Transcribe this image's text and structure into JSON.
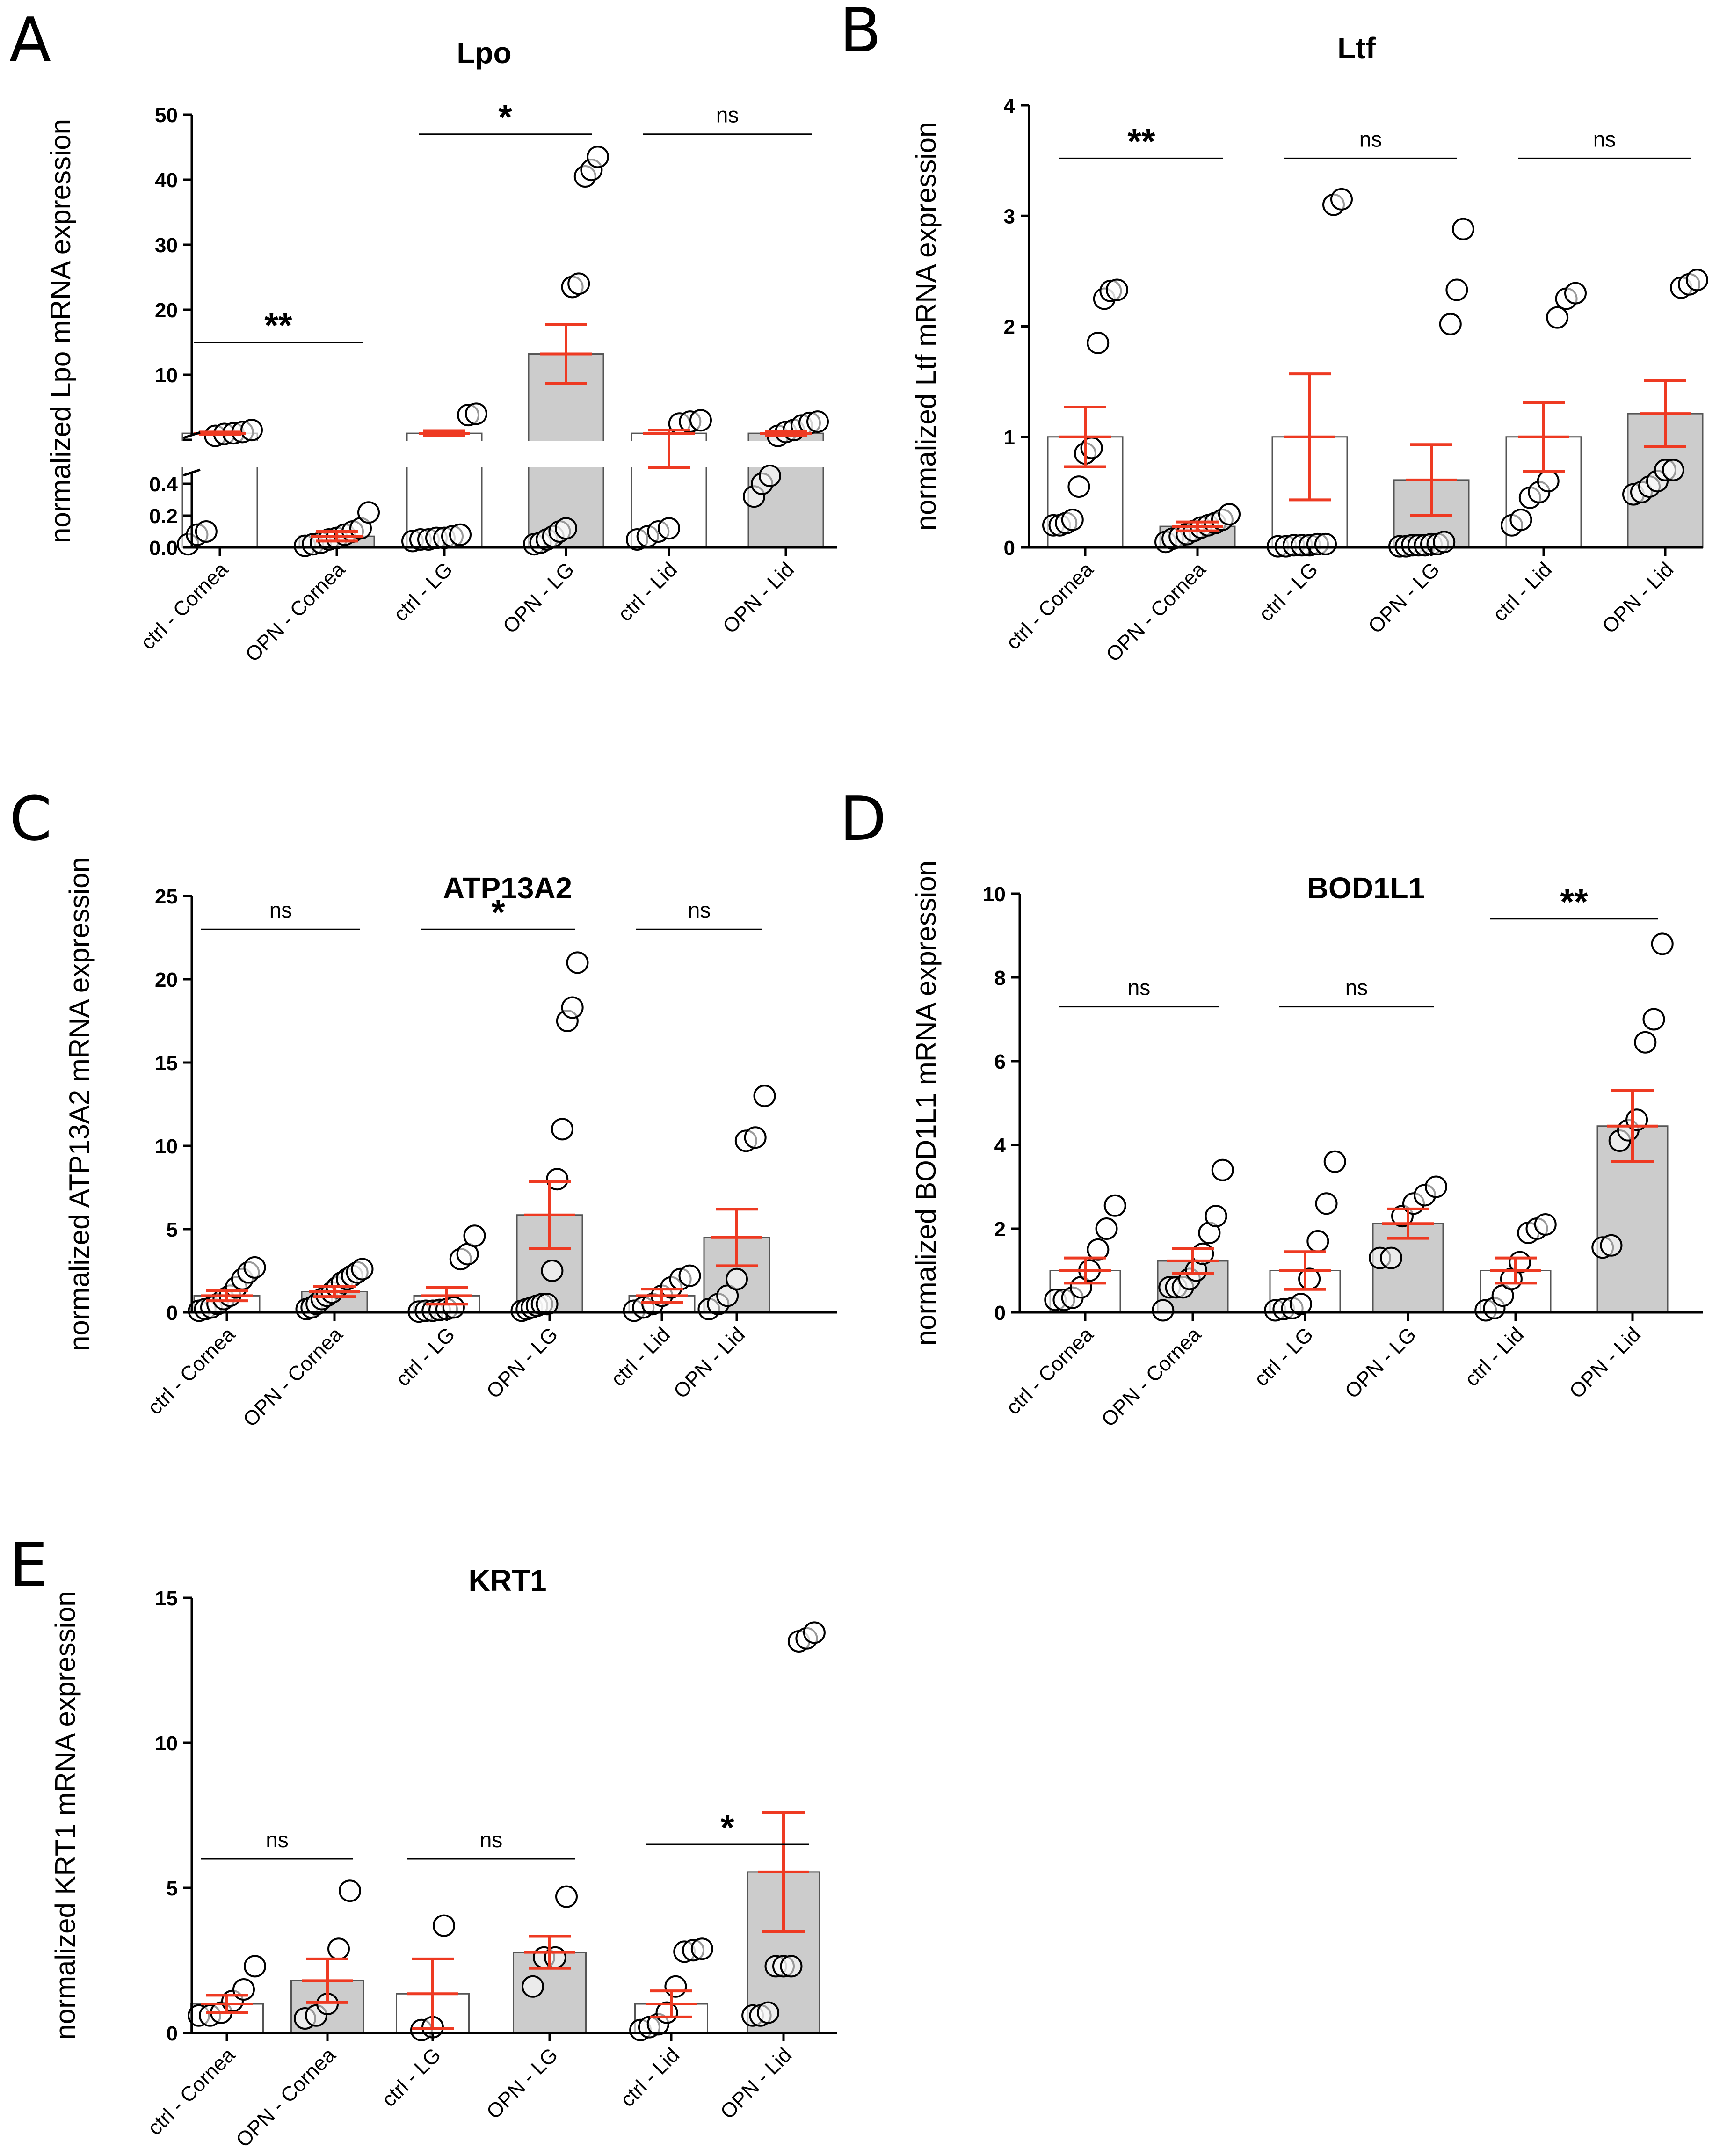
{
  "chart_data": [
    {
      "id": "A",
      "type": "bar",
      "panel_label": "A",
      "title": "Lpo",
      "ylabel": "normalized Lpo mRNA expression",
      "categories": [
        "ctrl - Cornea",
        "OPN - Cornea",
        "ctrl - LG",
        "OPN - LG",
        "ctrl - Lid",
        "OPN - Lid"
      ],
      "fills": [
        "#ffffff",
        "#cccccc",
        "#ffffff",
        "#cccccc",
        "#ffffff",
        "#cccccc"
      ],
      "axis_break": true,
      "ylim_lower": [
        0,
        0.5
      ],
      "ylim_upper": [
        0,
        50
      ],
      "yticks_lower": [
        "0.0",
        "0.2",
        "0.4"
      ],
      "yticks_upper": [
        "10",
        "20",
        "30",
        "40",
        "50"
      ],
      "values": [
        1.0,
        0.07,
        1.0,
        13.2,
        1.0,
        1.0
      ],
      "sem": [
        0.2,
        0.03,
        0.4,
        4.5,
        0.5,
        0.3
      ],
      "points": [
        [
          0.02,
          0.08,
          0.1,
          0.6,
          0.9,
          1.0,
          1.2,
          1.5
        ],
        [
          0.01,
          0.02,
          0.03,
          0.05,
          0.06,
          0.08,
          0.1,
          0.12,
          0.22
        ],
        [
          0.04,
          0.05,
          0.05,
          0.06,
          0.06,
          0.07,
          0.08,
          3.8,
          4.0
        ],
        [
          0.02,
          0.03,
          0.05,
          0.07,
          0.1,
          0.12,
          23.5,
          24.0,
          40.5,
          41.5,
          43.5
        ],
        [
          0.05,
          0.07,
          0.1,
          0.12,
          2.5,
          2.8,
          3.0
        ],
        [
          0.32,
          0.4,
          0.45,
          0.6,
          1.2,
          1.5,
          2.2,
          2.6,
          2.8
        ]
      ],
      "significance": [
        {
          "groups": [
            0,
            1
          ],
          "label": "**",
          "y": 15
        },
        {
          "groups": [
            2,
            3
          ],
          "label": "*",
          "y": 47
        },
        {
          "groups": [
            4,
            5
          ],
          "label": "ns",
          "y": 47
        }
      ]
    },
    {
      "id": "B",
      "type": "bar",
      "panel_label": "B",
      "title": "Ltf",
      "ylabel": "normalized Ltf mRNA expression",
      "categories": [
        "ctrl - Cornea",
        "OPN - Cornea",
        "ctrl - LG",
        "OPN - LG",
        "ctrl - Lid",
        "OPN - Lid"
      ],
      "fills": [
        "#ffffff",
        "#cccccc",
        "#ffffff",
        "#cccccc",
        "#ffffff",
        "#cccccc"
      ],
      "ylim": [
        0,
        4
      ],
      "yticks": [
        "0",
        "1",
        "2",
        "3",
        "4"
      ],
      "values": [
        1.0,
        0.19,
        1.0,
        0.61,
        1.0,
        1.21
      ],
      "sem": [
        0.27,
        0.04,
        0.57,
        0.32,
        0.31,
        0.3
      ],
      "points": [
        [
          0.2,
          0.2,
          0.22,
          0.25,
          0.55,
          0.85,
          0.9,
          1.85,
          2.25,
          2.32,
          2.33
        ],
        [
          0.05,
          0.08,
          0.1,
          0.12,
          0.15,
          0.18,
          0.2,
          0.22,
          0.25,
          0.3
        ],
        [
          0.01,
          0.01,
          0.02,
          0.02,
          0.02,
          0.03,
          0.03,
          3.1,
          3.15
        ],
        [
          0.01,
          0.01,
          0.02,
          0.02,
          0.02,
          0.03,
          0.03,
          0.05,
          2.02,
          2.33,
          2.88
        ],
        [
          0.2,
          0.25,
          0.45,
          0.5,
          0.6,
          2.08,
          2.25,
          2.3
        ],
        [
          0.48,
          0.5,
          0.55,
          0.6,
          0.7,
          0.7,
          2.35,
          2.38,
          2.42
        ]
      ],
      "significance": [
        {
          "groups": [
            0,
            1
          ],
          "label": "**",
          "y": 3.52
        },
        {
          "groups": [
            2,
            3
          ],
          "label": "ns",
          "y": 3.52
        },
        {
          "groups": [
            4,
            5
          ],
          "label": "ns",
          "y": 3.52
        }
      ]
    },
    {
      "id": "C",
      "type": "bar",
      "panel_label": "C",
      "title": "ATP13A2",
      "ylabel": "normalized ATP13A2 mRNA expression",
      "categories": [
        "ctrl - Cornea",
        "OPN - Cornea",
        "ctrl - LG",
        "OPN - LG",
        "ctrl - Lid",
        "OPN - Lid"
      ],
      "fills": [
        "#ffffff",
        "#cccccc",
        "#ffffff",
        "#cccccc",
        "#ffffff",
        "#cccccc"
      ],
      "ylim": [
        0,
        25
      ],
      "yticks": [
        "0",
        "5",
        "10",
        "15",
        "20",
        "25"
      ],
      "values": [
        1.0,
        1.25,
        1.0,
        5.85,
        1.0,
        4.5
      ],
      "sem": [
        0.3,
        0.3,
        0.5,
        2.0,
        0.4,
        1.7
      ],
      "points": [
        [
          0.1,
          0.2,
          0.3,
          0.5,
          0.8,
          1.0,
          1.5,
          2.0,
          2.4,
          2.7
        ],
        [
          0.2,
          0.3,
          0.5,
          0.8,
          1.0,
          1.2,
          1.5,
          1.8,
          2.0,
          2.2,
          2.4,
          2.6
        ],
        [
          0.05,
          0.1,
          0.1,
          0.15,
          0.2,
          0.3,
          3.2,
          3.5,
          4.6
        ],
        [
          0.1,
          0.2,
          0.3,
          0.4,
          0.5,
          0.5,
          2.5,
          8.0,
          11.0,
          17.5,
          18.3,
          21.0
        ],
        [
          0.1,
          0.3,
          0.5,
          1.0,
          1.5,
          2.0,
          2.2
        ],
        [
          0.2,
          0.5,
          1.0,
          2.0,
          10.3,
          10.5,
          13.0
        ]
      ],
      "significance": [
        {
          "groups": [
            0,
            1
          ],
          "label": "ns",
          "y": 23.0
        },
        {
          "groups": [
            2,
            3
          ],
          "label": "*",
          "y": 23.0
        },
        {
          "groups": [
            4,
            5
          ],
          "label": "ns",
          "y": 23.0
        }
      ]
    },
    {
      "id": "D",
      "type": "bar",
      "panel_label": "D",
      "title": "BOD1L1",
      "ylabel": "normalized BOD1L1 mRNA expression",
      "categories": [
        "ctrl - Cornea",
        "OPN - Cornea",
        "ctrl - LG",
        "OPN - LG",
        "ctrl - Lid",
        "OPN - Lid"
      ],
      "fills": [
        "#ffffff",
        "#cccccc",
        "#ffffff",
        "#cccccc",
        "#ffffff",
        "#cccccc"
      ],
      "ylim": [
        0,
        10
      ],
      "yticks": [
        "0",
        "2",
        "4",
        "6",
        "8",
        "10"
      ],
      "values": [
        1.0,
        1.23,
        1.0,
        2.12,
        1.0,
        4.45
      ],
      "sem": [
        0.3,
        0.3,
        0.45,
        0.35,
        0.3,
        0.85
      ],
      "points": [
        [
          0.3,
          0.3,
          0.35,
          0.6,
          1.0,
          1.5,
          2.0,
          2.55
        ],
        [
          0.05,
          0.6,
          0.6,
          0.6,
          0.8,
          1.0,
          1.4,
          1.9,
          2.3,
          3.4
        ],
        [
          0.05,
          0.08,
          0.1,
          0.2,
          0.8,
          1.7,
          2.6,
          3.6
        ],
        [
          1.3,
          1.3,
          2.3,
          2.6,
          2.8,
          3.0
        ],
        [
          0.05,
          0.1,
          0.4,
          0.8,
          1.2,
          1.9,
          2.0,
          2.1
        ],
        [
          1.55,
          1.6,
          4.1,
          4.35,
          4.6,
          6.45,
          7.0,
          8.8
        ]
      ],
      "significance": [
        {
          "groups": [
            0,
            1
          ],
          "label": "ns",
          "y": 7.3
        },
        {
          "groups": [
            2,
            3
          ],
          "label": "ns",
          "y": 7.3
        },
        {
          "groups": [
            4,
            5
          ],
          "label": "**",
          "y": 9.4
        }
      ]
    },
    {
      "id": "E",
      "type": "bar",
      "panel_label": "E",
      "title": "KRT1",
      "ylabel": "normalized KRT1 mRNA expression",
      "categories": [
        "ctrl - Cornea",
        "OPN - Cornea",
        "ctrl - LG",
        "OPN - LG",
        "ctrl - Lid",
        "OPN - Lid"
      ],
      "fills": [
        "#ffffff",
        "#cccccc",
        "#ffffff",
        "#cccccc",
        "#ffffff",
        "#cccccc"
      ],
      "ylim": [
        0,
        15
      ],
      "yticks": [
        "0",
        "5",
        "10",
        "15"
      ],
      "values": [
        1.0,
        1.8,
        1.35,
        2.78,
        1.0,
        5.55
      ],
      "sem": [
        0.3,
        0.75,
        1.2,
        0.55,
        0.45,
        2.05
      ],
      "points": [
        [
          0.6,
          0.6,
          0.7,
          1.1,
          1.5,
          2.3
        ],
        [
          0.5,
          0.6,
          1.0,
          2.9,
          4.9
        ],
        [
          0.1,
          0.2,
          3.7
        ],
        [
          1.6,
          2.6,
          2.6,
          4.7
        ],
        [
          0.1,
          0.2,
          0.3,
          0.7,
          1.6,
          2.8,
          2.85,
          2.9
        ],
        [
          0.6,
          0.6,
          0.7,
          2.3,
          2.3,
          2.3,
          13.5,
          13.6,
          13.8
        ]
      ],
      "significance": [
        {
          "groups": [
            0,
            1
          ],
          "label": "ns",
          "y": 6.0
        },
        {
          "groups": [
            2,
            3
          ],
          "label": "ns",
          "y": 6.0
        },
        {
          "groups": [
            4,
            5
          ],
          "label": "*",
          "y": 6.5
        }
      ]
    }
  ],
  "style": {
    "error_color": "#ee3a22",
    "outline_color": "#000000",
    "point_fill": "#ffffff",
    "ctrl_fill": "#ffffff",
    "opn_fill": "#cccccc"
  }
}
